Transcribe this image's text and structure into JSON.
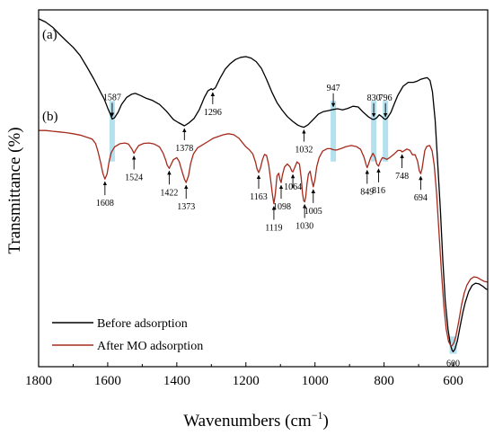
{
  "chart_data": {
    "type": "line",
    "title": "",
    "xlabel": "Wavenumbers (cm",
    "xlabel_sup": "−1",
    "xlabel_close": ")",
    "ylabel": "Transmittance (%)",
    "xlim": [
      1800,
      500
    ],
    "x_reversed": true,
    "ylim": [
      0,
      100
    ],
    "y_ticks_shown": false,
    "grid": false,
    "legend_position": "bottom-left",
    "x_ticks": [
      {
        "value": 1800,
        "label": "1800"
      },
      {
        "value": 1600,
        "label": "1600"
      },
      {
        "value": 1400,
        "label": "1400"
      },
      {
        "value": 1200,
        "label": "1200"
      },
      {
        "value": 1000,
        "label": "1000"
      },
      {
        "value": 800,
        "label": "800"
      },
      {
        "value": 600,
        "label": "600"
      }
    ],
    "highlight_bands": [
      1587,
      947,
      830,
      796
    ],
    "highlight_color": "#a8dcec",
    "series": [
      {
        "id": "a",
        "name": "Before adsorption",
        "panel_label": "(a)",
        "color": "#000000",
        "points": [
          [
            1800,
            97.5
          ],
          [
            1780,
            96.6
          ],
          [
            1760,
            95.2
          ],
          [
            1740,
            93.2
          ],
          [
            1720,
            91.3
          ],
          [
            1700,
            89.5
          ],
          [
            1680,
            87.2
          ],
          [
            1660,
            84.0
          ],
          [
            1640,
            80.6
          ],
          [
            1620,
            76.8
          ],
          [
            1610,
            75.0
          ],
          [
            1600,
            72.5
          ],
          [
            1590,
            70.2
          ],
          [
            1587,
            69.4
          ],
          [
            1580,
            69.8
          ],
          [
            1570,
            71.3
          ],
          [
            1560,
            73.5
          ],
          [
            1545,
            75.5
          ],
          [
            1530,
            76.4
          ],
          [
            1520,
            76.6
          ],
          [
            1505,
            76.0
          ],
          [
            1490,
            75.3
          ],
          [
            1470,
            74.6
          ],
          [
            1450,
            73.5
          ],
          [
            1430,
            71.6
          ],
          [
            1410,
            69.3
          ],
          [
            1395,
            68.4
          ],
          [
            1378,
            67.5
          ],
          [
            1365,
            68.3
          ],
          [
            1350,
            69.6
          ],
          [
            1335,
            72.0
          ],
          [
            1320,
            75.5
          ],
          [
            1310,
            77.3
          ],
          [
            1300,
            77.9
          ],
          [
            1296,
            77.6
          ],
          [
            1288,
            78.2
          ],
          [
            1275,
            80.8
          ],
          [
            1260,
            83.4
          ],
          [
            1245,
            85.0
          ],
          [
            1230,
            86.1
          ],
          [
            1215,
            86.7
          ],
          [
            1200,
            86.9
          ],
          [
            1185,
            86.5
          ],
          [
            1170,
            85.5
          ],
          [
            1155,
            83.6
          ],
          [
            1140,
            80.5
          ],
          [
            1125,
            77.0
          ],
          [
            1110,
            74.0
          ],
          [
            1095,
            71.9
          ],
          [
            1080,
            70.1
          ],
          [
            1065,
            68.8
          ],
          [
            1050,
            67.7
          ],
          [
            1040,
            67.3
          ],
          [
            1032,
            67.1
          ],
          [
            1020,
            67.8
          ],
          [
            1005,
            69.3
          ],
          [
            990,
            70.8
          ],
          [
            975,
            71.5
          ],
          [
            960,
            71.8
          ],
          [
            947,
            72.1
          ],
          [
            935,
            72.3
          ],
          [
            920,
            72.0
          ],
          [
            905,
            72.4
          ],
          [
            890,
            73.0
          ],
          [
            875,
            72.8
          ],
          [
            860,
            71.3
          ],
          [
            845,
            70.0
          ],
          [
            835,
            69.4
          ],
          [
            830,
            69.3
          ],
          [
            822,
            69.7
          ],
          [
            814,
            70.6
          ],
          [
            808,
            70.2
          ],
          [
            800,
            69.5
          ],
          [
            796,
            69.3
          ],
          [
            790,
            69.8
          ],
          [
            780,
            71.3
          ],
          [
            770,
            73.8
          ],
          [
            760,
            76.1
          ],
          [
            745,
            78.6
          ],
          [
            730,
            79.7
          ],
          [
            715,
            79.7
          ],
          [
            705,
            80.0
          ],
          [
            695,
            80.5
          ],
          [
            685,
            80.8
          ],
          [
            675,
            81.0
          ],
          [
            667,
            80.2
          ],
          [
            660,
            77.0
          ],
          [
            652,
            69.0
          ],
          [
            645,
            57.5
          ],
          [
            637,
            44.0
          ],
          [
            630,
            30.0
          ],
          [
            623,
            18.5
          ],
          [
            615,
            10.5
          ],
          [
            608,
            6.1
          ],
          [
            603,
            4.6
          ],
          [
            600,
            4.2
          ],
          [
            595,
            4.9
          ],
          [
            588,
            7.2
          ],
          [
            580,
            11.2
          ],
          [
            572,
            15.2
          ],
          [
            565,
            18.0
          ],
          [
            555,
            21.0
          ],
          [
            545,
            22.8
          ],
          [
            535,
            23.4
          ],
          [
            525,
            23.2
          ],
          [
            515,
            22.6
          ],
          [
            505,
            21.8
          ],
          [
            500,
            21.6
          ]
        ]
      },
      {
        "id": "b",
        "name": "After MO adsorption",
        "panel_label": "(b)",
        "color": "#a52a1c",
        "points": [
          [
            1800,
            66.2
          ],
          [
            1780,
            66.2
          ],
          [
            1760,
            66.0
          ],
          [
            1740,
            65.8
          ],
          [
            1720,
            65.6
          ],
          [
            1700,
            65.3
          ],
          [
            1680,
            64.9
          ],
          [
            1660,
            64.3
          ],
          [
            1645,
            63.8
          ],
          [
            1635,
            62.5
          ],
          [
            1628,
            60.2
          ],
          [
            1620,
            57.0
          ],
          [
            1614,
            54.2
          ],
          [
            1608,
            52.6
          ],
          [
            1602,
            54.0
          ],
          [
            1596,
            57.5
          ],
          [
            1590,
            60.0
          ],
          [
            1580,
            61.6
          ],
          [
            1565,
            62.5
          ],
          [
            1550,
            62.7
          ],
          [
            1540,
            62.4
          ],
          [
            1530,
            61.0
          ],
          [
            1524,
            59.8
          ],
          [
            1518,
            60.9
          ],
          [
            1510,
            62.0
          ],
          [
            1495,
            62.6
          ],
          [
            1480,
            62.7
          ],
          [
            1465,
            62.4
          ],
          [
            1450,
            61.6
          ],
          [
            1440,
            59.9
          ],
          [
            1432,
            57.9
          ],
          [
            1428,
            56.5
          ],
          [
            1422,
            55.6
          ],
          [
            1416,
            56.8
          ],
          [
            1410,
            58.0
          ],
          [
            1400,
            58.6
          ],
          [
            1393,
            57.5
          ],
          [
            1385,
            54.8
          ],
          [
            1378,
            52.6
          ],
          [
            1373,
            51.6
          ],
          [
            1366,
            53.5
          ],
          [
            1360,
            56.9
          ],
          [
            1352,
            59.6
          ],
          [
            1340,
            61.3
          ],
          [
            1325,
            62.2
          ],
          [
            1310,
            63.1
          ],
          [
            1295,
            64.0
          ],
          [
            1280,
            64.5
          ],
          [
            1265,
            65.0
          ],
          [
            1250,
            65.3
          ],
          [
            1235,
            65.0
          ],
          [
            1220,
            64.0
          ],
          [
            1210,
            62.8
          ],
          [
            1200,
            61.6
          ],
          [
            1190,
            60.8
          ],
          [
            1180,
            59.6
          ],
          [
            1172,
            57.3
          ],
          [
            1168,
            55.5
          ],
          [
            1163,
            54.4
          ],
          [
            1158,
            55.6
          ],
          [
            1152,
            58.0
          ],
          [
            1146,
            59.5
          ],
          [
            1140,
            59.2
          ],
          [
            1134,
            56.5
          ],
          [
            1128,
            52.0
          ],
          [
            1123,
            48.0
          ],
          [
            1119,
            45.7
          ],
          [
            1115,
            48.4
          ],
          [
            1110,
            53.5
          ],
          [
            1105,
            54.2
          ],
          [
            1101,
            52.4
          ],
          [
            1098,
            51.6
          ],
          [
            1094,
            53.8
          ],
          [
            1088,
            56.0
          ],
          [
            1080,
            56.8
          ],
          [
            1072,
            56.0
          ],
          [
            1067,
            54.8
          ],
          [
            1064,
            54.6
          ],
          [
            1058,
            56.0
          ],
          [
            1052,
            57.4
          ],
          [
            1045,
            56.8
          ],
          [
            1040,
            53.0
          ],
          [
            1036,
            48.6
          ],
          [
            1033,
            46.6
          ],
          [
            1030,
            46.2
          ],
          [
            1027,
            47.5
          ],
          [
            1023,
            51.2
          ],
          [
            1019,
            54.0
          ],
          [
            1014,
            54.8
          ],
          [
            1010,
            52.6
          ],
          [
            1005,
            50.4
          ],
          [
            1000,
            52.5
          ],
          [
            995,
            56.0
          ],
          [
            988,
            58.6
          ],
          [
            978,
            60.4
          ],
          [
            965,
            61.1
          ],
          [
            955,
            61.1
          ],
          [
            947,
            60.8
          ],
          [
            938,
            60.7
          ],
          [
            925,
            61.1
          ],
          [
            910,
            61.7
          ],
          [
            895,
            62.0
          ],
          [
            880,
            61.7
          ],
          [
            868,
            60.9
          ],
          [
            858,
            58.7
          ],
          [
            852,
            56.6
          ],
          [
            849,
            55.8
          ],
          [
            845,
            56.8
          ],
          [
            839,
            58.6
          ],
          [
            832,
            59.8
          ],
          [
            826,
            58.7
          ],
          [
            821,
            56.8
          ],
          [
            816,
            56.2
          ],
          [
            811,
            57.5
          ],
          [
            805,
            58.6
          ],
          [
            798,
            58.4
          ],
          [
            792,
            58.1
          ],
          [
            784,
            58.6
          ],
          [
            772,
            59.5
          ],
          [
            760,
            60.6
          ],
          [
            752,
            60.6
          ],
          [
            748,
            60.2
          ],
          [
            742,
            60.5
          ],
          [
            734,
            61.0
          ],
          [
            725,
            60.6
          ],
          [
            718,
            59.4
          ],
          [
            710,
            59.4
          ],
          [
            703,
            57.6
          ],
          [
            698,
            54.9
          ],
          [
            694,
            54.1
          ],
          [
            690,
            55.5
          ],
          [
            686,
            58.2
          ],
          [
            682,
            60.6
          ],
          [
            676,
            61.8
          ],
          [
            668,
            62.0
          ],
          [
            661,
            60.5
          ],
          [
            655,
            56.6
          ],
          [
            648,
            48.5
          ],
          [
            641,
            37.5
          ],
          [
            634,
            26.5
          ],
          [
            627,
            17.0
          ],
          [
            620,
            10.5
          ],
          [
            613,
            7.0
          ],
          [
            607,
            5.9
          ],
          [
            603,
            5.9
          ],
          [
            598,
            6.7
          ],
          [
            592,
            8.6
          ],
          [
            584,
            12.6
          ],
          [
            576,
            17.2
          ],
          [
            568,
            20.6
          ],
          [
            560,
            22.9
          ],
          [
            550,
            24.5
          ],
          [
            540,
            25.2
          ],
          [
            530,
            25.0
          ],
          [
            520,
            24.4
          ],
          [
            510,
            23.9
          ],
          [
            500,
            23.7
          ]
        ]
      }
    ],
    "peak_annotations": [
      {
        "label": "1587",
        "x": 1587,
        "series": "a",
        "side": "above"
      },
      {
        "label": "1378",
        "x": 1378,
        "series": "a",
        "side": "below"
      },
      {
        "label": "1296",
        "x": 1296,
        "series": "a",
        "side": "below"
      },
      {
        "label": "1032",
        "x": 1032,
        "series": "a",
        "side": "below"
      },
      {
        "label": "947",
        "x": 947,
        "series": "a",
        "side": "above"
      },
      {
        "label": "830",
        "x": 830,
        "series": "a",
        "side": "above"
      },
      {
        "label": "796",
        "x": 796,
        "series": "a",
        "side": "above"
      },
      {
        "label": "1608",
        "x": 1608,
        "series": "b",
        "side": "below"
      },
      {
        "label": "1524",
        "x": 1524,
        "series": "b",
        "side": "below"
      },
      {
        "label": "1422",
        "x": 1422,
        "series": "b",
        "side": "below"
      },
      {
        "label": "1373",
        "x": 1373,
        "series": "b",
        "side": "below"
      },
      {
        "label": "1163",
        "x": 1163,
        "series": "b",
        "side": "below"
      },
      {
        "label": "1119",
        "x": 1119,
        "series": "b",
        "side": "below"
      },
      {
        "label": "1098",
        "x": 1098,
        "series": "b",
        "side": "below"
      },
      {
        "label": "1064",
        "x": 1064,
        "series": "b",
        "side": "below"
      },
      {
        "label": "1030",
        "x": 1030,
        "series": "b",
        "side": "below"
      },
      {
        "label": "1005",
        "x": 1005,
        "series": "b",
        "side": "below"
      },
      {
        "label": "849",
        "x": 849,
        "series": "b",
        "side": "below"
      },
      {
        "label": "816",
        "x": 816,
        "series": "b",
        "side": "below"
      },
      {
        "label": "748",
        "x": 748,
        "series": "b",
        "side": "below"
      },
      {
        "label": "694",
        "x": 694,
        "series": "b",
        "side": "below"
      },
      {
        "label": "600",
        "x": 600,
        "series": "a",
        "side": "below"
      }
    ]
  }
}
